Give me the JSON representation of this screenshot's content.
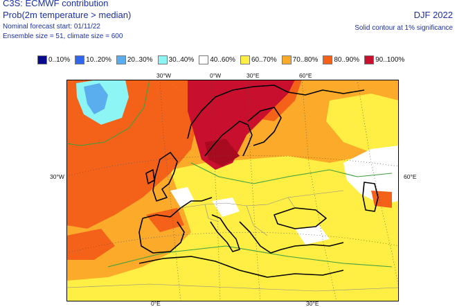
{
  "header": {
    "title": "C3S: ECMWF contribution",
    "subtitle": "Prob(2m temperature > median)",
    "forecast_start": "Nominal forecast start: 01/11/22",
    "ensemble": "Ensemble size = 51, climate size = 600",
    "season": "DJF 2022",
    "significance": "Solid contour at 1% significance"
  },
  "legend": [
    {
      "label": "0..10%",
      "color": "#0a0a8c"
    },
    {
      "label": "10..20%",
      "color": "#3366ee"
    },
    {
      "label": "20..30%",
      "color": "#5aaeee"
    },
    {
      "label": "30..40%",
      "color": "#8ef5f5"
    },
    {
      "label": "40..60%",
      "color": "#ffffff"
    },
    {
      "label": "60..70%",
      "color": "#ffee44"
    },
    {
      "label": "70..80%",
      "color": "#fbaa2a"
    },
    {
      "label": "80..90%",
      "color": "#f4621a"
    },
    {
      "label": "90..100%",
      "color": "#c8102e"
    }
  ],
  "axis_labels": {
    "top_30w": "30°W",
    "top_0": "0°W",
    "top_30e": "30°E",
    "top_60e": "60°E",
    "left_30w": "30°W",
    "right_60e": "60°E",
    "bottom_0": "0°E",
    "bottom_30e": "30°E"
  }
}
